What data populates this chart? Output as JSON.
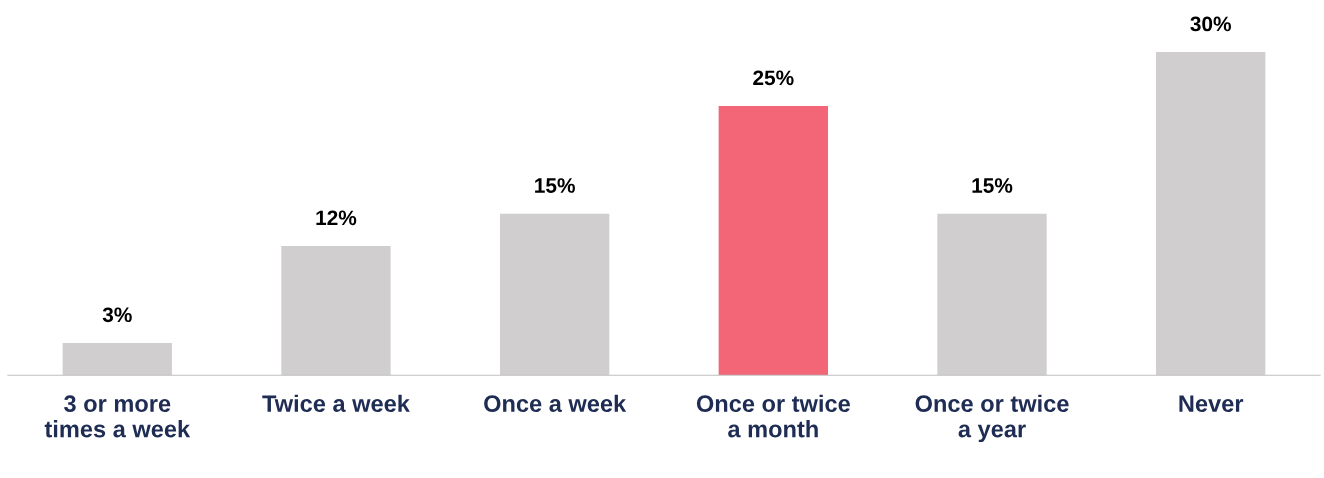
{
  "chart_data": {
    "type": "bar",
    "categories": [
      "3 or more\ntimes a week",
      "Twice a week",
      "Once a week",
      "Once or twice\na month",
      "Once or twice\na year",
      "Never"
    ],
    "values": [
      3,
      12,
      15,
      25,
      15,
      30
    ],
    "value_labels": [
      "3%",
      "12%",
      "15%",
      "25%",
      "15%",
      "30%"
    ],
    "colors": [
      "#d0cece",
      "#d0cece",
      "#d0cece",
      "#f26678",
      "#d0cece",
      "#d0cece"
    ],
    "grid": false,
    "legend": false
  }
}
